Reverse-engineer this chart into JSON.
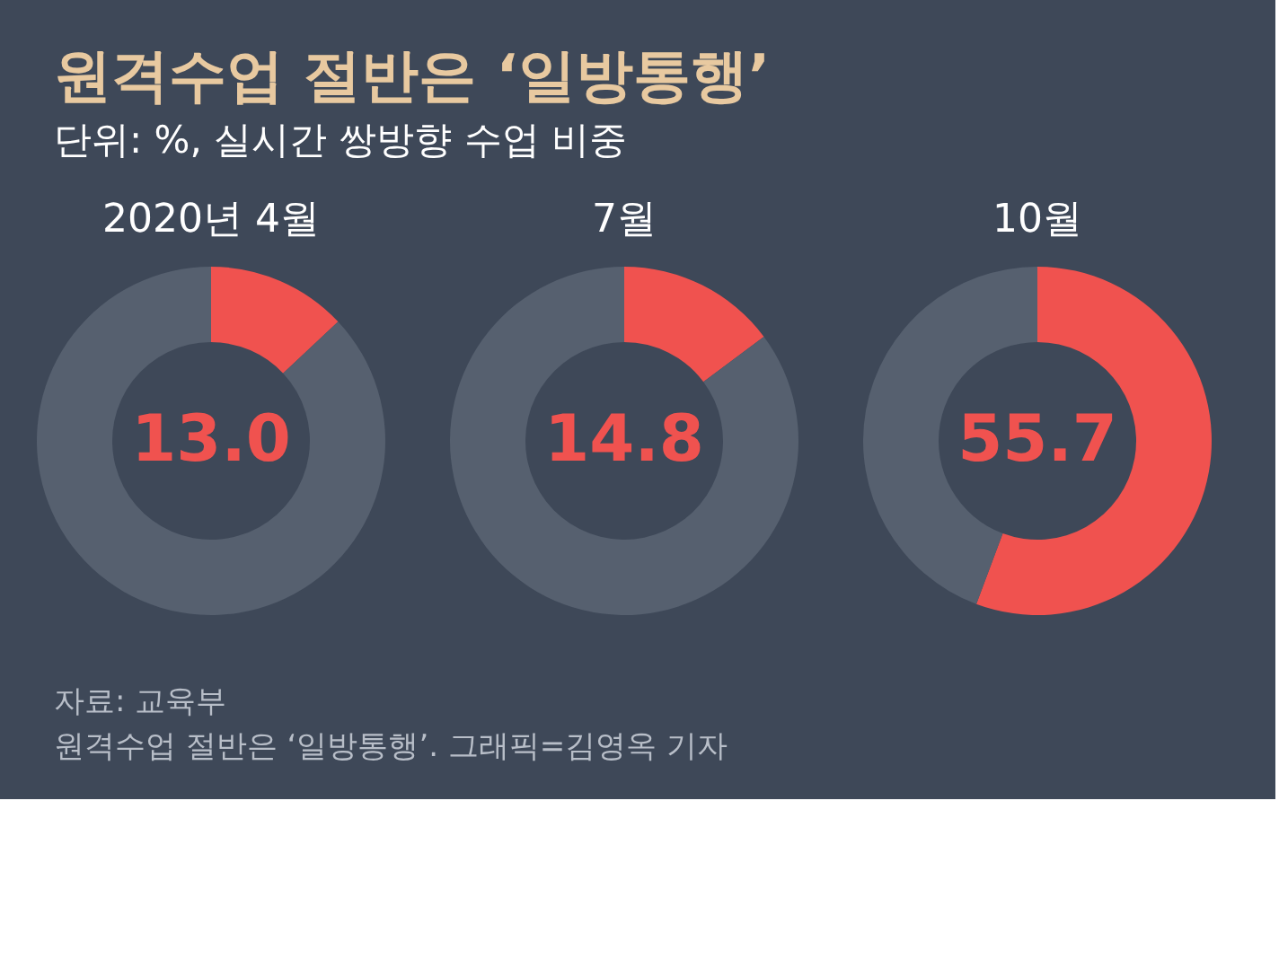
{
  "chart_data": [
    {
      "type": "other",
      "title": "원격수업 절반은 ‘일방통행’",
      "subtitle": "단위: %, 실시간 쌍방향 수업 비중"
    },
    {
      "type": "donut",
      "title": "2020년 4월",
      "categories": [
        null,
        null
      ],
      "values": [
        13.0,
        87.0
      ],
      "colors": [
        "#f0524f",
        "#56606f"
      ],
      "value_labels": [
        "13.0",
        null
      ]
    },
    {
      "type": "donut",
      "title": "7월",
      "categories": [
        null,
        null
      ],
      "values": [
        14.8,
        85.2
      ],
      "colors": [
        "#f0524f",
        "#56606f"
      ],
      "value_labels": [
        "14.8",
        null
      ]
    },
    {
      "type": "donut",
      "title": "10월",
      "categories": [
        null,
        null
      ],
      "values": [
        55.7,
        44.3
      ],
      "colors": [
        "#f0524f",
        "#56606f"
      ],
      "value_labels": [
        "55.7",
        null
      ]
    },
    {
      "type": "other",
      "annotations": [
        "자료: 교육부",
        "원격수업 절반은 ‘일방통행’. 그래픽=김영옥 기자"
      ]
    }
  ]
}
